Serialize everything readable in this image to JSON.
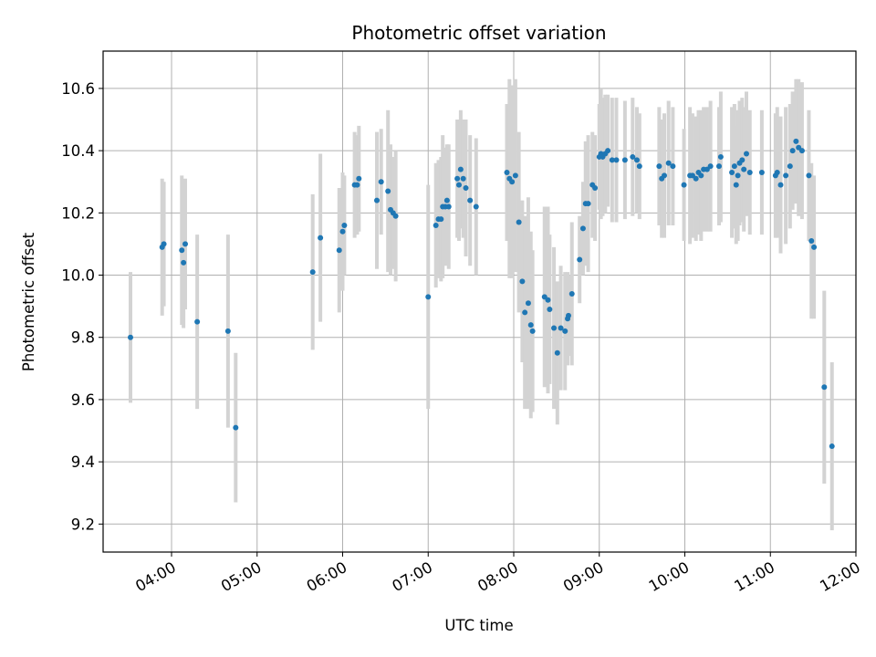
{
  "chart_data": {
    "type": "scatter",
    "title": "Photometric offset variation",
    "xlabel": "UTC time",
    "ylabel": "Photometric offset",
    "x_unit": "hours UTC",
    "xlim": [
      3.2,
      12.0
    ],
    "ylim": [
      9.11,
      10.72
    ],
    "x_ticks": [
      4,
      5,
      6,
      7,
      8,
      9,
      10,
      11,
      12
    ],
    "x_tick_labels": [
      "04:00",
      "05:00",
      "06:00",
      "07:00",
      "08:00",
      "09:00",
      "10:00",
      "11:00",
      "12:00"
    ],
    "y_ticks": [
      9.2,
      9.4,
      9.6,
      9.8,
      10.0,
      10.2,
      10.4,
      10.6
    ],
    "y_tick_labels": [
      "9.2",
      "9.4",
      "9.6",
      "9.8",
      "10.0",
      "10.2",
      "10.4",
      "10.6"
    ],
    "grid": true,
    "colors": {
      "marker": "#1f77b4",
      "errorbar": "#d3d3d3",
      "grid": "#b0b0b0"
    },
    "points": [
      [
        3.52,
        9.8,
        0.21
      ],
      [
        3.89,
        10.09,
        0.22
      ],
      [
        3.91,
        10.1,
        0.2
      ],
      [
        4.12,
        10.08,
        0.24
      ],
      [
        4.14,
        10.04,
        0.21
      ],
      [
        4.16,
        10.1,
        0.21
      ],
      [
        4.3,
        9.85,
        0.28
      ],
      [
        4.66,
        9.82,
        0.31
      ],
      [
        4.75,
        9.51,
        0.24
      ],
      [
        5.65,
        10.01,
        0.25
      ],
      [
        5.74,
        10.12,
        0.27
      ],
      [
        5.96,
        10.08,
        0.2
      ],
      [
        6.0,
        10.14,
        0.19
      ],
      [
        6.02,
        10.16,
        0.16
      ],
      [
        6.14,
        10.29,
        0.17
      ],
      [
        6.17,
        10.29,
        0.16
      ],
      [
        6.19,
        10.31,
        0.17
      ],
      [
        6.4,
        10.24,
        0.22
      ],
      [
        6.45,
        10.3,
        0.17
      ],
      [
        6.53,
        10.27,
        0.26
      ],
      [
        6.56,
        10.21,
        0.21
      ],
      [
        6.59,
        10.2,
        0.18
      ],
      [
        6.62,
        10.19,
        0.21
      ],
      [
        7.0,
        9.93,
        0.36
      ],
      [
        7.09,
        10.16,
        0.2
      ],
      [
        7.12,
        10.18,
        0.19
      ],
      [
        7.15,
        10.18,
        0.2
      ],
      [
        7.17,
        10.22,
        0.23
      ],
      [
        7.2,
        10.22,
        0.19
      ],
      [
        7.22,
        10.24,
        0.18
      ],
      [
        7.24,
        10.22,
        0.2
      ],
      [
        7.34,
        10.31,
        0.19
      ],
      [
        7.36,
        10.29,
        0.18
      ],
      [
        7.38,
        10.34,
        0.19
      ],
      [
        7.41,
        10.31,
        0.19
      ],
      [
        7.44,
        10.28,
        0.22
      ],
      [
        7.49,
        10.24,
        0.21
      ],
      [
        7.56,
        10.22,
        0.22
      ],
      [
        7.92,
        10.33,
        0.22
      ],
      [
        7.95,
        10.31,
        0.32
      ],
      [
        7.98,
        10.3,
        0.31
      ],
      [
        8.02,
        10.32,
        0.31
      ],
      [
        8.06,
        10.17,
        0.29
      ],
      [
        8.1,
        9.98,
        0.26
      ],
      [
        8.13,
        9.88,
        0.31
      ],
      [
        8.17,
        9.91,
        0.34
      ],
      [
        8.2,
        9.84,
        0.3
      ],
      [
        8.22,
        9.82,
        0.26
      ],
      [
        8.36,
        9.93,
        0.29
      ],
      [
        8.4,
        9.92,
        0.3
      ],
      [
        8.42,
        9.89,
        0.24
      ],
      [
        8.47,
        9.83,
        0.26
      ],
      [
        8.51,
        9.75,
        0.23
      ],
      [
        8.55,
        9.83,
        0.2
      ],
      [
        8.6,
        9.82,
        0.19
      ],
      [
        8.63,
        9.86,
        0.15
      ],
      [
        8.64,
        9.87,
        0.13
      ],
      [
        8.68,
        9.94,
        0.23
      ],
      [
        8.77,
        10.05,
        0.14
      ],
      [
        8.81,
        10.15,
        0.15
      ],
      [
        8.84,
        10.23,
        0.2
      ],
      [
        8.87,
        10.23,
        0.22
      ],
      [
        8.92,
        10.29,
        0.17
      ],
      [
        8.95,
        10.28,
        0.17
      ],
      [
        9.0,
        10.38,
        0.17
      ],
      [
        9.02,
        10.39,
        0.21
      ],
      [
        9.04,
        10.38,
        0.19
      ],
      [
        9.07,
        10.39,
        0.19
      ],
      [
        9.1,
        10.4,
        0.18
      ],
      [
        9.15,
        10.37,
        0.2
      ],
      [
        9.2,
        10.37,
        0.2
      ],
      [
        9.3,
        10.37,
        0.19
      ],
      [
        9.39,
        10.38,
        0.19
      ],
      [
        9.44,
        10.37,
        0.17
      ],
      [
        9.47,
        10.35,
        0.17
      ],
      [
        9.7,
        10.35,
        0.19
      ],
      [
        9.73,
        10.31,
        0.19
      ],
      [
        9.76,
        10.32,
        0.2
      ],
      [
        9.81,
        10.36,
        0.2
      ],
      [
        9.86,
        10.35,
        0.19
      ],
      [
        9.99,
        10.29,
        0.18
      ],
      [
        10.06,
        10.32,
        0.22
      ],
      [
        10.09,
        10.32,
        0.2
      ],
      [
        10.13,
        10.31,
        0.2
      ],
      [
        10.16,
        10.33,
        0.2
      ],
      [
        10.19,
        10.32,
        0.21
      ],
      [
        10.22,
        10.34,
        0.2
      ],
      [
        10.26,
        10.34,
        0.2
      ],
      [
        10.3,
        10.35,
        0.21
      ],
      [
        10.4,
        10.35,
        0.19
      ],
      [
        10.42,
        10.38,
        0.21
      ],
      [
        10.55,
        10.33,
        0.21
      ],
      [
        10.58,
        10.35,
        0.2
      ],
      [
        10.6,
        10.29,
        0.19
      ],
      [
        10.62,
        10.32,
        0.21
      ],
      [
        10.64,
        10.36,
        0.2
      ],
      [
        10.67,
        10.37,
        0.2
      ],
      [
        10.69,
        10.34,
        0.2
      ],
      [
        10.72,
        10.39,
        0.2
      ],
      [
        10.76,
        10.33,
        0.2
      ],
      [
        10.9,
        10.33,
        0.2
      ],
      [
        11.06,
        10.32,
        0.2
      ],
      [
        11.08,
        10.33,
        0.21
      ],
      [
        11.12,
        10.29,
        0.22
      ],
      [
        11.18,
        10.32,
        0.22
      ],
      [
        11.23,
        10.35,
        0.2
      ],
      [
        11.26,
        10.4,
        0.19
      ],
      [
        11.3,
        10.43,
        0.2
      ],
      [
        11.33,
        10.41,
        0.22
      ],
      [
        11.37,
        10.4,
        0.22
      ],
      [
        11.45,
        10.32,
        0.21
      ],
      [
        11.48,
        10.11,
        0.25
      ],
      [
        11.51,
        10.09,
        0.23
      ],
      [
        11.63,
        9.64,
        0.31
      ],
      [
        11.72,
        9.45,
        0.27
      ]
    ]
  }
}
